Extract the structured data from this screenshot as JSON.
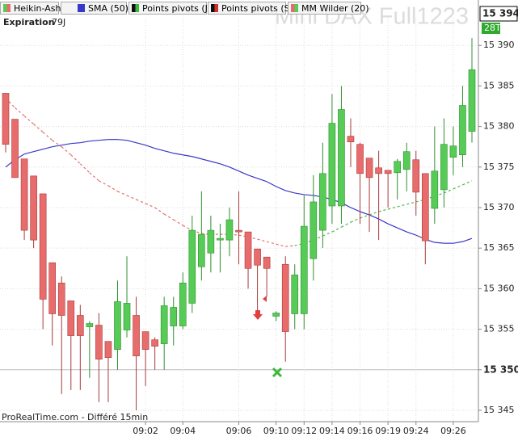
{
  "chart_data": {
    "type": "candlestick",
    "title": "Mini DAX Full1223",
    "name": "Heikin-Ashi",
    "expiration_label": "Expiration",
    "expiration_value": "79J",
    "footer": "ProRealTime.com - Différé 15min",
    "up_color": "#56cc56",
    "up_edge": "#2f8f2f",
    "down_color": "#e86c6c",
    "down_edge": "#a83a3a",
    "categories": [
      null,
      null,
      null,
      null,
      null,
      null,
      null,
      null,
      null,
      null,
      null,
      null,
      null,
      null,
      null,
      "09:02",
      null,
      null,
      null,
      "09:04",
      null,
      null,
      null,
      null,
      null,
      "09:06",
      null,
      null,
      null,
      "09:10",
      null,
      null,
      "09:12",
      null,
      null,
      "09:14",
      null,
      null,
      "09:16",
      null,
      null,
      "09:19",
      null,
      null,
      "09:24",
      null,
      null,
      null,
      "09:26",
      null,
      null
    ],
    "open": [
      15384.1,
      15380.9,
      15376.0,
      15373.9,
      15371.7,
      15363.2,
      15360.7,
      15358.5,
      15356.7,
      15355.3,
      15355.5,
      15353.5,
      15352.5,
      15354.9,
      15356.7,
      15354.7,
      15353.7,
      15353.2,
      15355.4,
      15355.4,
      15358.2,
      15362.7,
      15364.4,
      15366.0,
      15366.0,
      15367.2,
      15367.0,
      15364.9,
      15363.9,
      15356.6,
      15363.0,
      15356.9,
      15356.9,
      15363.7,
      15367.2,
      15370.2,
      15370.2,
      15378.8,
      15377.8,
      15376.1,
      15374.9,
      15374.6,
      15374.3,
      15374.7,
      15375.9,
      15374.2,
      15369.9,
      15372.2,
      15376.2,
      15376.5,
      15379.4
    ],
    "high": [
      15384.1,
      15380.9,
      15376.0,
      15373.9,
      15371.7,
      15363.2,
      15361.5,
      15358.5,
      15358.0,
      15356.0,
      15357.0,
      15353.5,
      15361.0,
      15364.0,
      15359.0,
      15354.7,
      15354.0,
      15359.0,
      15359.0,
      15362.0,
      15369.0,
      15372.0,
      15369.0,
      15368.0,
      15370.0,
      15372.0,
      15367.0,
      15364.9,
      15363.9,
      15357.2,
      15364.0,
      15363.0,
      15371.5,
      15374.0,
      15378.0,
      15384.0,
      15385.0,
      15381.0,
      15378.0,
      15376.1,
      15377.0,
      15374.6,
      15376.0,
      15378.0,
      15377.0,
      15374.2,
      15380.0,
      15381.0,
      15380.0,
      15385.0,
      15390.9
    ],
    "low": [
      15376.8,
      15373.7,
      15366.0,
      15365.0,
      15355.0,
      15353.0,
      15347.0,
      15347.5,
      15347.5,
      15349.0,
      15346.0,
      15346.0,
      15350.0,
      15354.0,
      15345.0,
      15348.0,
      15350.0,
      15350.0,
      15353.0,
      15355.0,
      15357.0,
      15361.0,
      15362.0,
      15362.0,
      15364.0,
      15363.0,
      15360.0,
      15357.0,
      15359.0,
      15356.0,
      15351.0,
      15355.0,
      15355.0,
      15361.0,
      15365.0,
      15368.0,
      15368.0,
      15375.0,
      15368.0,
      15367.0,
      15366.0,
      15370.0,
      15371.0,
      15372.0,
      15369.0,
      15363.0,
      15368.0,
      15370.0,
      15374.0,
      15375.0,
      15378.0
    ],
    "close": [
      15377.8,
      15373.7,
      15367.2,
      15366.0,
      15358.7,
      15356.9,
      15356.7,
      15354.2,
      15354.2,
      15355.7,
      15351.3,
      15351.5,
      15358.4,
      15358.2,
      15351.7,
      15352.5,
      15352.9,
      15357.9,
      15357.7,
      15360.7,
      15367.2,
      15366.7,
      15367.2,
      15366.2,
      15368.5,
      15367.0,
      15362.5,
      15362.9,
      15362.5,
      15357.0,
      15354.7,
      15361.7,
      15367.7,
      15370.7,
      15374.2,
      15380.4,
      15382.1,
      15378.1,
      15374.2,
      15373.7,
      15374.2,
      15374.2,
      15375.7,
      15376.9,
      15371.9,
      15365.9,
      15374.5,
      15377.8,
      15377.6,
      15382.6,
      15387.0
    ],
    "overlays": [
      {
        "name": "SMA (50)",
        "color": "#3838c8",
        "dashed": false,
        "values": [
          15375.0,
          15375.9,
          15376.6,
          15376.9,
          15377.2,
          15377.5,
          15377.7,
          15377.9,
          15378.0,
          15378.2,
          15378.3,
          15378.4,
          15378.4,
          15378.3,
          15378.0,
          15377.7,
          15377.3,
          15377.0,
          15376.7,
          15376.5,
          15376.3,
          15376.0,
          15375.7,
          15375.4,
          15375.0,
          15374.5,
          15374.0,
          15373.6,
          15373.2,
          15372.6,
          15372.1,
          15371.8,
          15371.6,
          15371.5,
          15371.3,
          15371.0,
          15370.6,
          15370.0,
          15369.5,
          15369.1,
          15368.6,
          15368.0,
          15367.5,
          15367.0,
          15366.6,
          15366.1,
          15365.7,
          15365.6,
          15365.6,
          15365.8,
          15366.2
        ]
      },
      {
        "name": "MM Wilder (20)",
        "dashed": true,
        "values": [
          15383.5,
          15382.3,
          15381.3,
          15380.3,
          15379.3,
          15378.3,
          15377.5,
          15376.5,
          15375.4,
          15374.3,
          15373.3,
          15372.7,
          15372.0,
          15371.5,
          15371.0,
          15370.5,
          15370.0,
          15369.2,
          15368.5,
          15367.8,
          15367.2,
          15366.8,
          15366.7,
          15366.7,
          15366.7,
          15366.6,
          15366.4,
          15366.1,
          15365.8,
          15365.5,
          15365.2,
          15365.3,
          15365.6,
          15366.0,
          15366.5,
          15367.0,
          15367.6,
          15368.2,
          15368.7,
          15369.1,
          15369.5,
          15369.8,
          15370.1,
          15370.4,
          15370.7,
          15371.0,
          15371.4,
          15371.8,
          15372.3,
          15372.8,
          15373.3
        ],
        "colors": [
          "#e07070",
          "#e07070",
          "#e07070",
          "#e07070",
          "#e07070",
          "#e07070",
          "#e07070",
          "#e07070",
          "#e07070",
          "#e07070",
          "#e07070",
          "#e07070",
          "#e07070",
          "#e07070",
          "#e07070",
          "#e07070",
          "#e07070",
          "#e07070",
          "#e07070",
          "#e07070",
          "#e07070",
          "#e07070",
          "#e07070",
          "#e07070",
          "#e07070",
          "#e07070",
          "#e07070",
          "#e07070",
          "#e07070",
          "#e07070",
          "#e07070",
          "#e07070",
          "#4cb84c",
          "#4cb84c",
          "#4cb84c",
          "#4cb84c",
          "#4cb84c",
          "#4cb84c",
          "#4cb84c",
          "#4cb84c",
          "#4cb84c",
          "#4cb84c",
          "#4cb84c",
          "#4cb84c",
          "#4cb84c",
          "#4cb84c",
          "#4cb84c",
          "#4cb84c",
          "#4cb84c",
          "#4cb84c",
          "#4cb84c"
        ]
      }
    ],
    "indicators": [
      "Points pivots (J)",
      "Points pivots (S)"
    ],
    "ylim": [
      15343.6,
      15395.6
    ],
    "yticks": [
      {
        "value": 15345,
        "label": "15 345"
      },
      {
        "value": 15350,
        "label": "15 350"
      },
      {
        "value": 15355,
        "label": "15 355"
      },
      {
        "value": 15360,
        "label": "15 360"
      },
      {
        "value": 15365,
        "label": "15 365"
      },
      {
        "value": 15370,
        "label": "15 370"
      },
      {
        "value": 15375,
        "label": "15 375"
      },
      {
        "value": 15380,
        "label": "15 380"
      },
      {
        "value": 15385,
        "label": "15 385"
      },
      {
        "value": 15390,
        "label": "15 390"
      }
    ],
    "hline": 15350,
    "last_price": {
      "value": 15394,
      "label": "15 394"
    },
    "volume_label": "28T",
    "grid": true
  }
}
